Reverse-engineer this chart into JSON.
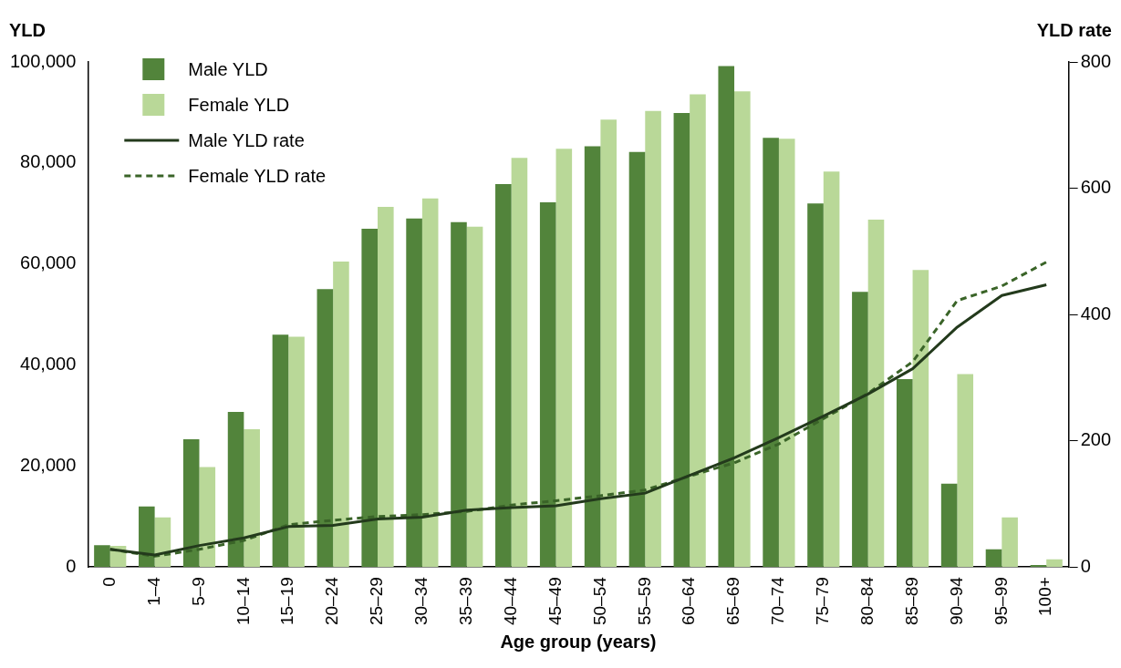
{
  "chart_data": {
    "type": "bar",
    "xlabel": "Age group (years)",
    "ylabel": "YLD",
    "y2label": "YLD rate",
    "categories": [
      "0",
      "1–4",
      "5–9",
      "10–14",
      "15–19",
      "20–24",
      "25–29",
      "30–34",
      "35–39",
      "40–44",
      "45–49",
      "50–54",
      "55–59",
      "60–64",
      "65–69",
      "70–74",
      "75–79",
      "80–84",
      "85–89",
      "90–94",
      "95–99",
      "100+"
    ],
    "series": [
      {
        "name": "Male YLD",
        "color": "#52843b",
        "values": [
          4300,
          12000,
          25300,
          30700,
          46000,
          55000,
          67000,
          69000,
          68300,
          75800,
          72200,
          83300,
          82200,
          89900,
          99200,
          85000,
          72000,
          54500,
          37200,
          16500,
          3500,
          400
        ]
      },
      {
        "name": "Female YLD",
        "color": "#b9d898",
        "values": [
          4200,
          9800,
          19800,
          27300,
          45600,
          60500,
          71300,
          73000,
          67400,
          81000,
          82800,
          88600,
          90300,
          93600,
          94200,
          84800,
          78300,
          68800,
          58800,
          38200,
          9800,
          1500
        ]
      },
      {
        "name": "Male YLD rate",
        "type": "line",
        "axis": "y2",
        "line_style": "solid",
        "color": "#233a1c",
        "values": [
          28,
          19,
          34,
          46,
          64,
          66,
          76,
          79,
          90,
          94,
          97,
          108,
          117,
          145,
          173,
          205,
          239,
          274,
          314,
          380,
          430,
          447
        ]
      },
      {
        "name": "Female YLD rate",
        "type": "line",
        "axis": "y2",
        "line_style": "dashed",
        "color": "#3a6428",
        "values": [
          28,
          17,
          28,
          42,
          67,
          74,
          80,
          83,
          88,
          98,
          105,
          113,
          122,
          144,
          165,
          195,
          235,
          275,
          325,
          422,
          445,
          483
        ]
      }
    ],
    "ylim": [
      0,
      100000
    ],
    "yticks": [
      {
        "value": 0,
        "label": "0"
      },
      {
        "value": 20000,
        "label": "20,000"
      },
      {
        "value": 40000,
        "label": "40,000"
      },
      {
        "value": 60000,
        "label": "60,000"
      },
      {
        "value": 80000,
        "label": "80,000"
      },
      {
        "value": 100000,
        "label": "100,000"
      }
    ],
    "y2lim": [
      0,
      800
    ],
    "y2ticks": [
      0,
      200,
      400,
      600,
      800
    ],
    "marker": "none",
    "grid": false,
    "legend": "top left"
  }
}
